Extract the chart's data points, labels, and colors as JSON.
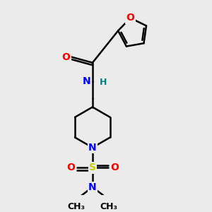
{
  "bg_color": "#ebebeb",
  "bond_color": "#000000",
  "bond_width": 1.8,
  "atom_colors": {
    "O": "#ff0000",
    "N": "#0000ff",
    "S": "#cccc00",
    "C": "#000000",
    "H": "#008080"
  },
  "font_size": 10,
  "font_size_small": 9
}
